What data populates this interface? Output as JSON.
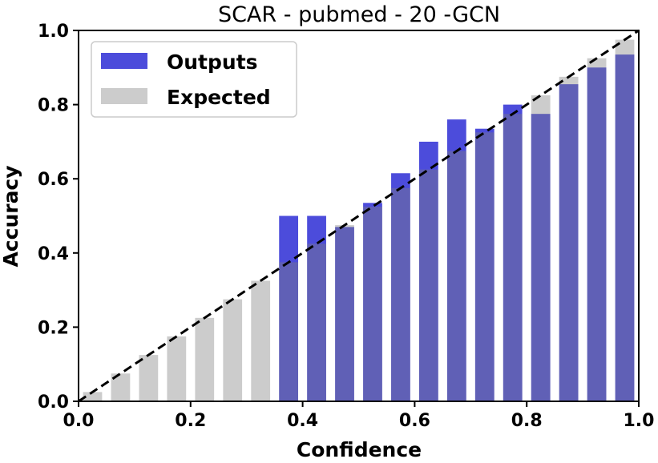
{
  "chart_data": {
    "type": "bar",
    "title": "SCAR - pubmed - 20 -GCN",
    "xlabel": "Confidence",
    "ylabel": "Accuracy",
    "xlim": [
      0.0,
      1.0
    ],
    "ylim": [
      0.0,
      1.0
    ],
    "xticks": [
      "0.0",
      "0.2",
      "0.4",
      "0.6",
      "0.8",
      "1.0"
    ],
    "yticks": [
      "0.0",
      "0.2",
      "0.4",
      "0.6",
      "0.8",
      "1.0"
    ],
    "legend_position": "top-left",
    "bin_width": 0.05,
    "bin_centers": [
      0.025,
      0.075,
      0.125,
      0.175,
      0.225,
      0.275,
      0.325,
      0.375,
      0.425,
      0.475,
      0.525,
      0.575,
      0.625,
      0.675,
      0.725,
      0.775,
      0.825,
      0.875,
      0.925,
      0.975
    ],
    "series": [
      {
        "name": "Outputs",
        "color": "#0000cc",
        "values": [
          null,
          null,
          null,
          null,
          null,
          null,
          null,
          0.5,
          0.5,
          0.47,
          0.535,
          0.615,
          0.7,
          0.76,
          0.735,
          0.8,
          0.775,
          0.855,
          0.9,
          0.935
        ]
      },
      {
        "name": "Expected",
        "color": "#808080",
        "values": [
          0.025,
          0.075,
          0.125,
          0.175,
          0.225,
          0.275,
          0.325,
          0.375,
          0.425,
          0.475,
          0.525,
          0.575,
          0.625,
          0.675,
          0.725,
          0.775,
          0.825,
          0.875,
          0.925,
          0.975
        ]
      }
    ],
    "reference_line": "diagonal-dashed"
  }
}
